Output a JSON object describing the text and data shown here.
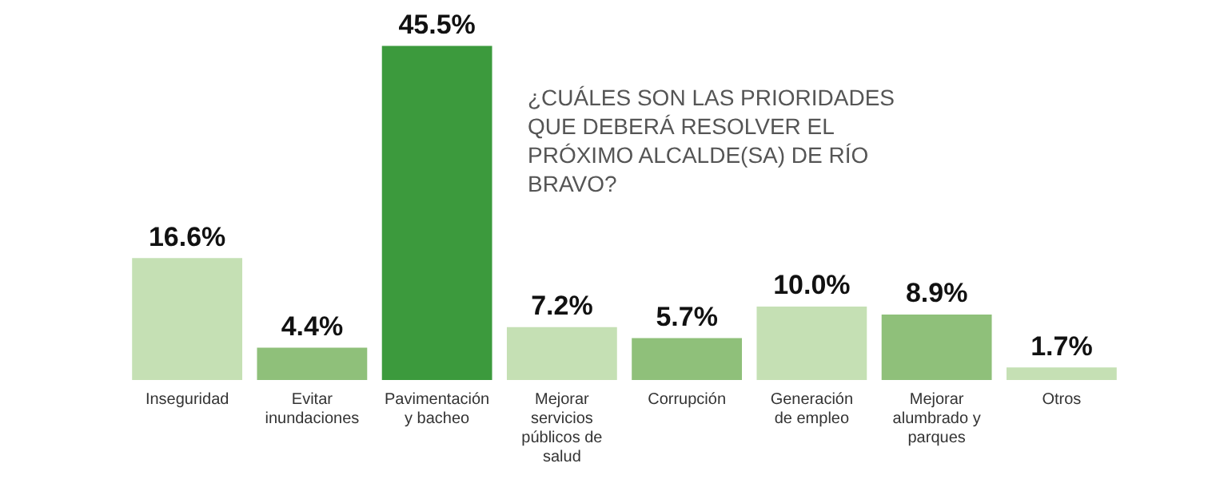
{
  "chart_data": {
    "type": "bar",
    "title": "¿CUÁLES SON LAS PRIORIDADES QUE DEBERÁ RESOLVER EL PRÓXIMO ALCALDE(SA) DE RÍO BRAVO?",
    "categories": [
      "Inseguridad",
      "Evitar inundaciones",
      "Pavimentación y bacheo",
      "Mejorar servicios públicos de salud",
      "Corrupción",
      "Generación de empleo",
      "Mejorar alumbrado y parques",
      "Otros"
    ],
    "values": [
      16.6,
      4.4,
      45.5,
      7.2,
      5.7,
      10.0,
      8.9,
      1.7
    ],
    "value_labels": [
      "16.6%",
      "4.4%",
      "45.5%",
      "7.2%",
      "5.7%",
      "10.0%",
      "8.9%",
      "1.7%"
    ],
    "colors": [
      "#c5e0b4",
      "#8fc07a",
      "#3c9a3d",
      "#c5e0b4",
      "#8fc07a",
      "#c5e0b4",
      "#8fc07a",
      "#c5e0b4"
    ],
    "grid": false,
    "legend": false
  }
}
